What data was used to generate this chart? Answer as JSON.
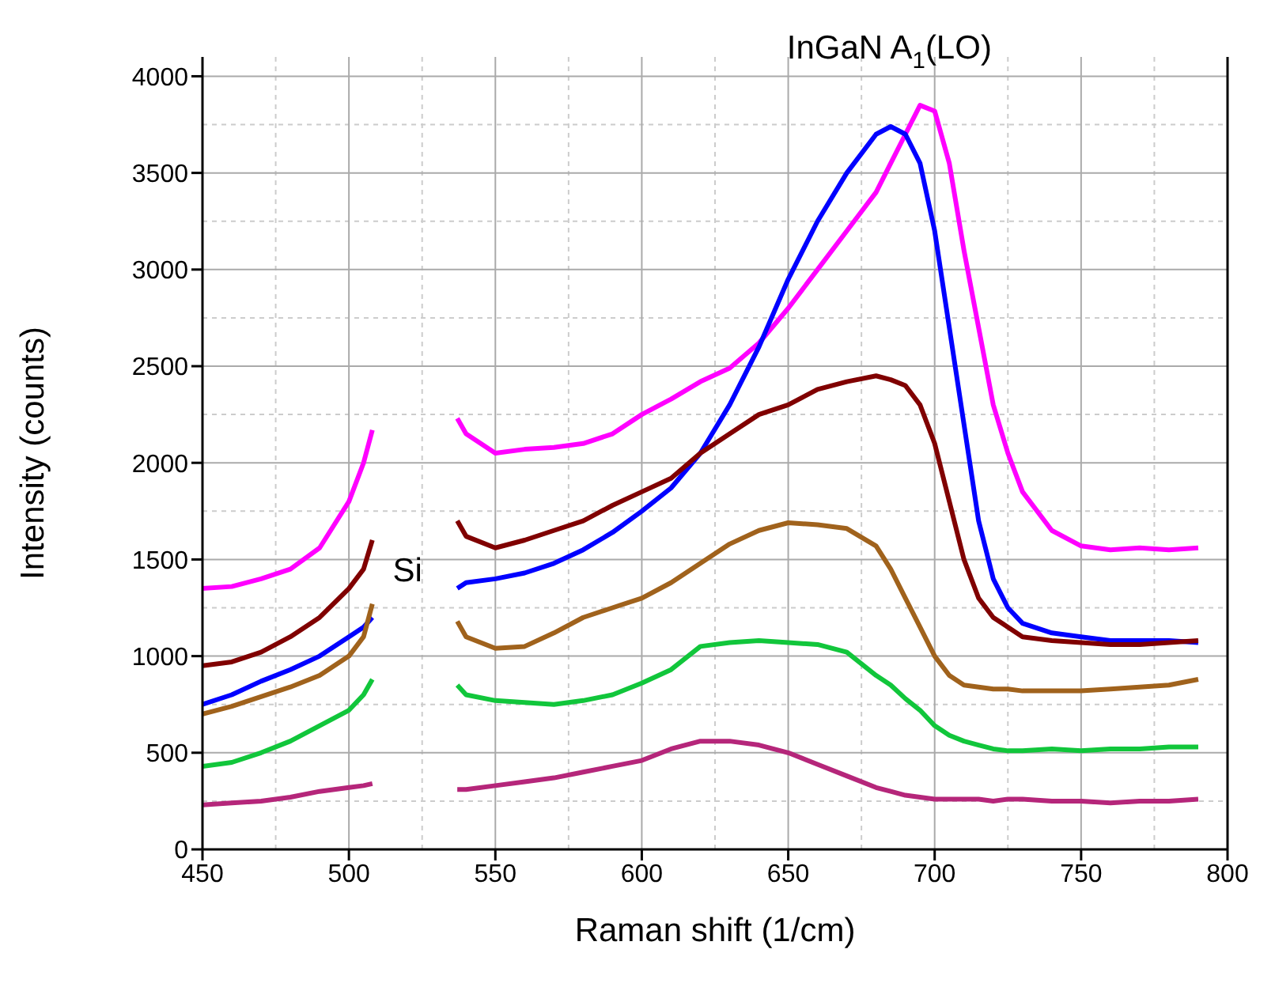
{
  "chart_data": {
    "type": "line",
    "xlabel": "Raman shift (1/cm)",
    "ylabel": "Intensity (counts)",
    "x": [
      450,
      460,
      470,
      480,
      490,
      500,
      505,
      508,
      522,
      537,
      540,
      550,
      560,
      570,
      580,
      590,
      600,
      610,
      620,
      630,
      640,
      650,
      660,
      670,
      680,
      685,
      690,
      695,
      700,
      705,
      710,
      715,
      720,
      725,
      730,
      740,
      750,
      760,
      770,
      780,
      790
    ],
    "series": [
      {
        "color": "#ff00ff",
        "values": [
          1350,
          1360,
          1400,
          1450,
          1560,
          1800,
          2000,
          2170,
          null,
          2230,
          2150,
          2050,
          2070,
          2080,
          2100,
          2150,
          2250,
          2330,
          2420,
          2490,
          2620,
          2800,
          3000,
          3200,
          3400,
          3550,
          3700,
          3850,
          3820,
          3550,
          3100,
          2700,
          2300,
          2050,
          1850,
          1650,
          1570,
          1550,
          1560,
          1550,
          1560
        ]
      },
      {
        "color": "#0000ff",
        "values": [
          750,
          800,
          870,
          930,
          1000,
          1100,
          1150,
          1200,
          null,
          1350,
          1380,
          1400,
          1430,
          1480,
          1550,
          1640,
          1750,
          1870,
          2050,
          2300,
          2600,
          2950,
          3250,
          3500,
          3700,
          3740,
          3700,
          3550,
          3200,
          2700,
          2200,
          1700,
          1400,
          1250,
          1170,
          1120,
          1100,
          1080,
          1080,
          1080,
          1070
        ]
      },
      {
        "color": "#800000",
        "values": [
          950,
          970,
          1020,
          1100,
          1200,
          1350,
          1450,
          1600,
          null,
          1700,
          1620,
          1560,
          1600,
          1650,
          1700,
          1780,
          1850,
          1920,
          2050,
          2150,
          2250,
          2300,
          2380,
          2420,
          2450,
          2430,
          2400,
          2300,
          2100,
          1800,
          1500,
          1300,
          1200,
          1150,
          1100,
          1080,
          1070,
          1060,
          1060,
          1070,
          1080
        ]
      },
      {
        "color": "#a0621c",
        "values": [
          700,
          740,
          790,
          840,
          900,
          1000,
          1100,
          1270,
          null,
          1180,
          1100,
          1040,
          1050,
          1120,
          1200,
          1250,
          1300,
          1380,
          1480,
          1580,
          1650,
          1690,
          1680,
          1660,
          1570,
          1450,
          1300,
          1150,
          1000,
          900,
          850,
          840,
          830,
          830,
          820,
          820,
          820,
          830,
          840,
          850,
          880
        ]
      },
      {
        "color": "#11c63b",
        "values": [
          430,
          450,
          500,
          560,
          640,
          720,
          800,
          880,
          null,
          850,
          800,
          770,
          760,
          750,
          770,
          800,
          860,
          930,
          1050,
          1070,
          1080,
          1070,
          1060,
          1020,
          900,
          850,
          780,
          720,
          640,
          590,
          560,
          540,
          520,
          510,
          510,
          520,
          510,
          520,
          520,
          530,
          530
        ]
      },
      {
        "color": "#b5267a",
        "values": [
          230,
          240,
          250,
          270,
          300,
          320,
          330,
          340,
          null,
          310,
          310,
          330,
          350,
          370,
          400,
          430,
          460,
          520,
          560,
          560,
          540,
          500,
          440,
          380,
          320,
          300,
          280,
          270,
          260,
          260,
          260,
          260,
          250,
          260,
          260,
          250,
          250,
          240,
          250,
          250,
          260
        ]
      }
    ],
    "xlim": [
      450,
      800
    ],
    "xticks": [
      450,
      500,
      550,
      600,
      650,
      700,
      750,
      800
    ],
    "ylim": [
      0,
      4100
    ],
    "yticks": [
      0,
      500,
      1000,
      1500,
      2000,
      2500,
      3000,
      3500,
      4000
    ],
    "grid": true,
    "line_style": "solid",
    "marker": "none",
    "annotations": [
      "Si",
      "InGaN A$_{1}$(LO)"
    ]
  }
}
